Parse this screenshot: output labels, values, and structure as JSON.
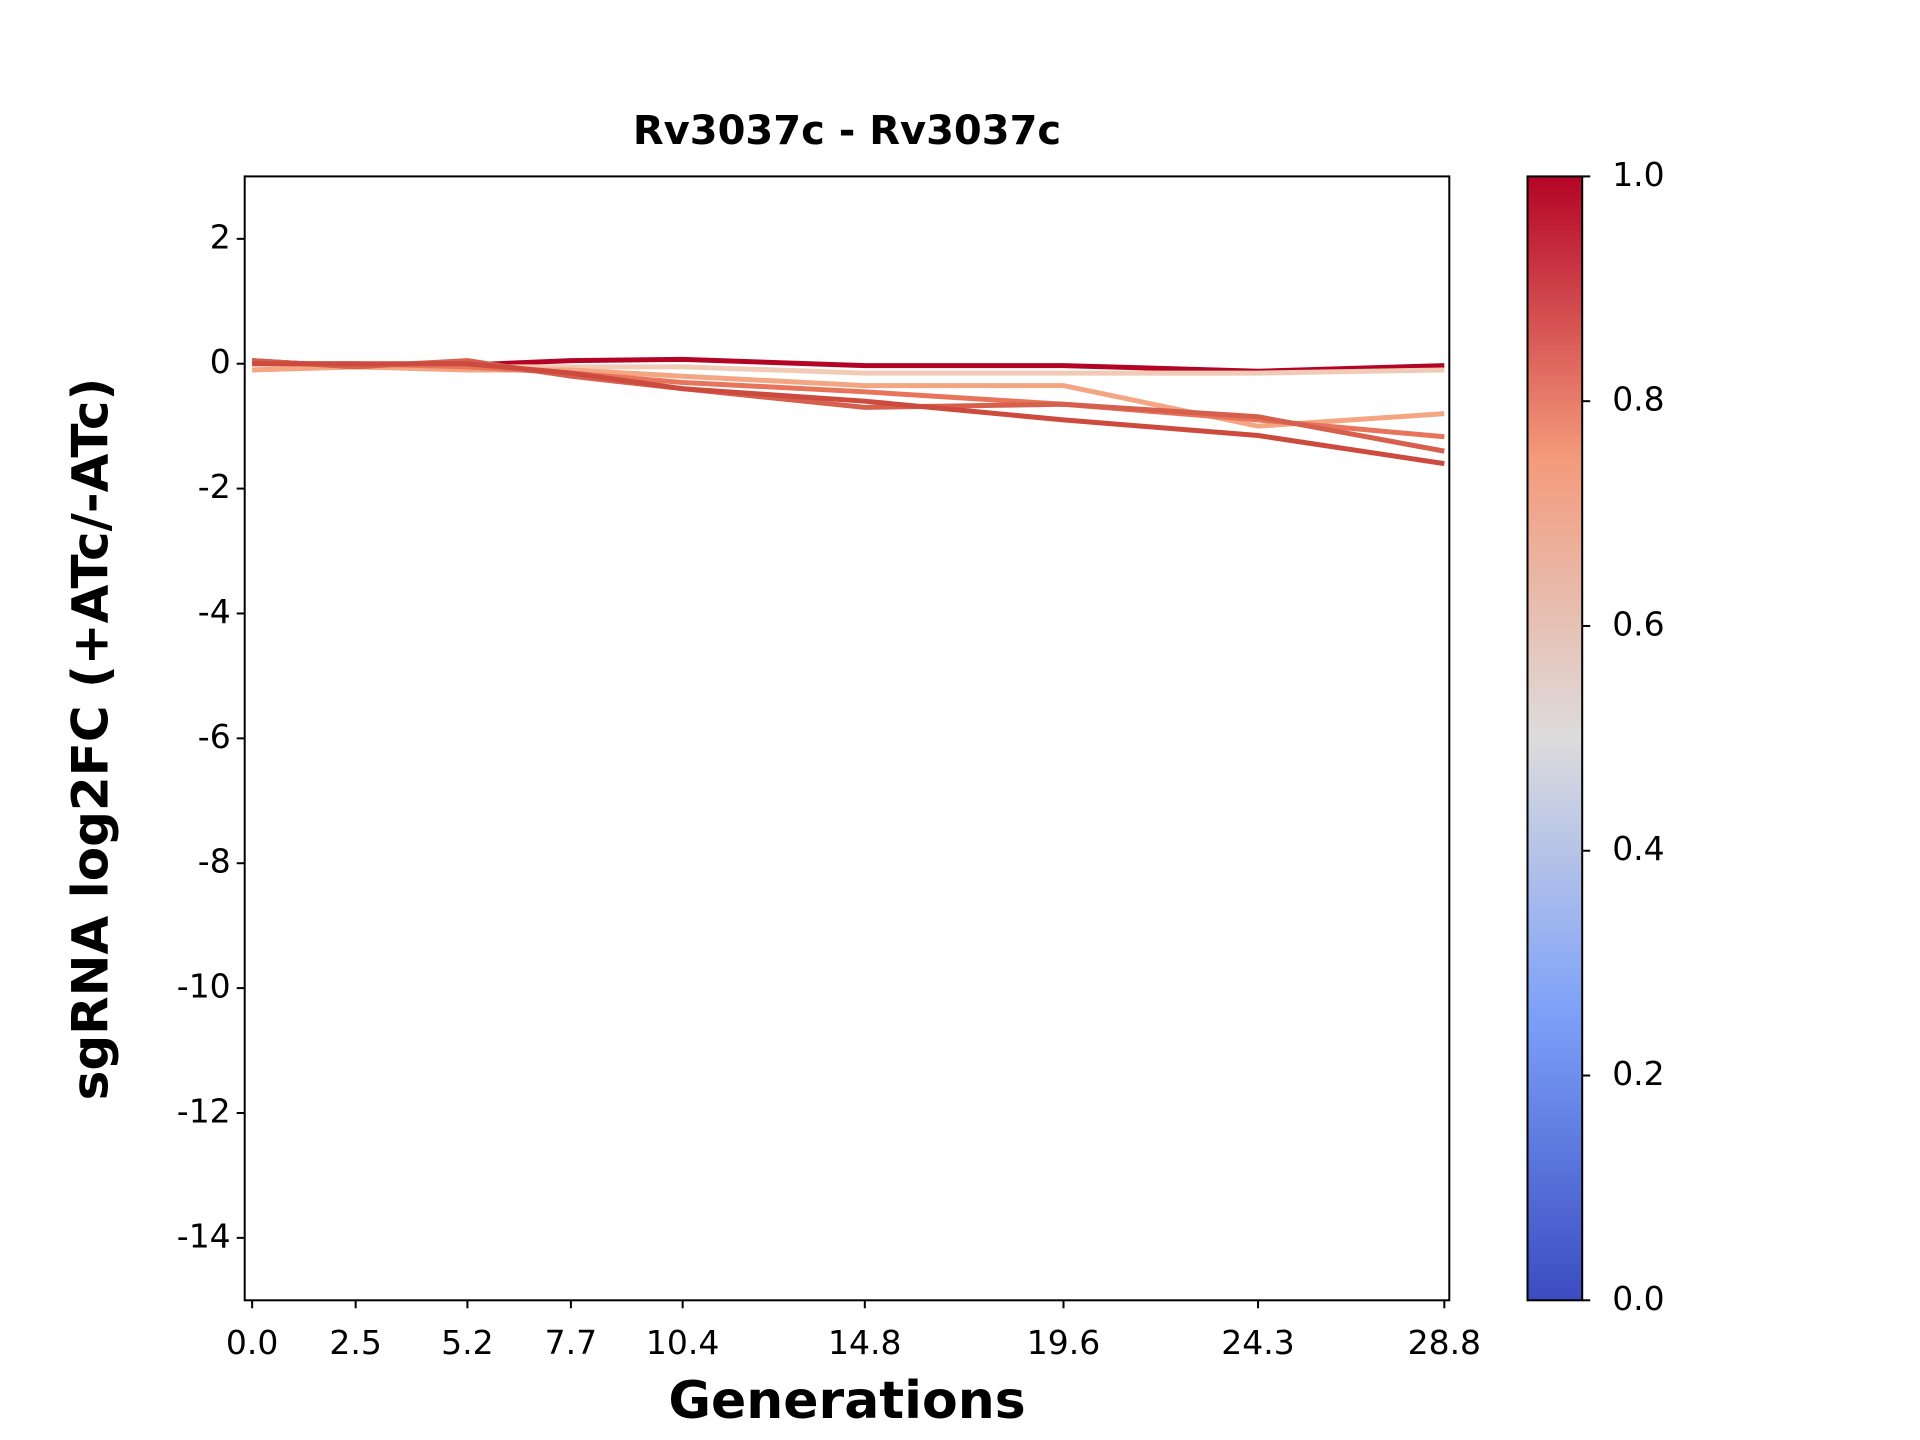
{
  "chart_data": {
    "type": "line",
    "title": "Rv3037c - Rv3037c",
    "xlabel": "Generations",
    "ylabel": "sgRNA log2FC (+ATc/-ATc)",
    "x": [
      0.0,
      2.5,
      5.2,
      7.7,
      10.4,
      14.8,
      19.6,
      24.3,
      28.8
    ],
    "series": [
      {
        "color": "#b40426",
        "values": [
          0.05,
          -0.05,
          -0.02,
          0.05,
          0.07,
          -0.03,
          -0.03,
          -0.12,
          -0.03
        ]
      },
      {
        "color": "#f2cbb7",
        "values": [
          -0.1,
          -0.05,
          -0.05,
          -0.05,
          -0.05,
          -0.15,
          -0.15,
          -0.15,
          -0.1
        ]
      },
      {
        "color": "#f4a582",
        "values": [
          -0.1,
          -0.05,
          -0.1,
          -0.1,
          -0.2,
          -0.35,
          -0.35,
          -1.0,
          -0.8
        ]
      },
      {
        "color": "#e7745b",
        "values": [
          0.0,
          0.0,
          -0.05,
          -0.15,
          -0.3,
          -0.45,
          -0.65,
          -0.9,
          -1.17
        ]
      },
      {
        "color": "#d6604d",
        "values": [
          0.05,
          -0.05,
          0.05,
          -0.2,
          -0.4,
          -0.7,
          -0.65,
          -0.85,
          -1.4
        ]
      },
      {
        "color": "#cc4a3e",
        "values": [
          0.0,
          0.0,
          0.0,
          -0.15,
          -0.4,
          -0.6,
          -0.9,
          -1.15,
          -1.6
        ]
      }
    ],
    "xlim": [
      -0.18,
      28.92
    ],
    "ylim": [
      -15,
      3
    ],
    "xticks": [
      {
        "value": 0,
        "label": "0.0"
      },
      2.5,
      5.2,
      7.7,
      10.4,
      14.8,
      19.6,
      24.3,
      28.8
    ],
    "yticks": [
      -14,
      -12,
      -10,
      -8,
      -6,
      -4,
      -2,
      0,
      2
    ],
    "colorbar": {
      "lim": [
        0,
        1
      ],
      "ticks": [
        {
          "value": 0,
          "label": "0.0"
        },
        0.2,
        0.4,
        0.6,
        0.8,
        {
          "value": 1,
          "label": "1.0"
        }
      ]
    }
  }
}
